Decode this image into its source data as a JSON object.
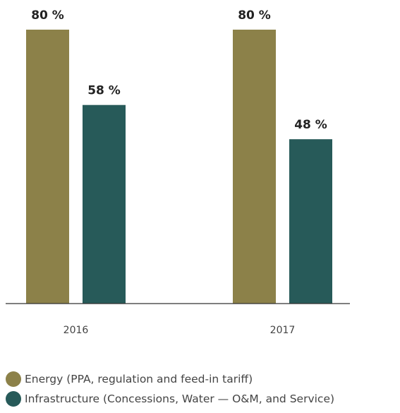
{
  "chart_data": {
    "type": "bar",
    "categories": [
      "2016",
      "2017"
    ],
    "series": [
      {
        "name": "Energy (PPA, regulation and feed-in tariff)",
        "values": [
          80,
          80
        ],
        "labels": [
          "80 %",
          "80 %"
        ],
        "color": "#8c8149"
      },
      {
        "name": "Infrastructure (Concessions, Water — O&M, and Service)",
        "values": [
          58,
          48
        ],
        "labels": [
          "58 %",
          "48 %"
        ],
        "color": "#275a59"
      }
    ],
    "ylim": [
      0,
      80
    ],
    "grid": false,
    "legend_position": "bottom-left"
  }
}
